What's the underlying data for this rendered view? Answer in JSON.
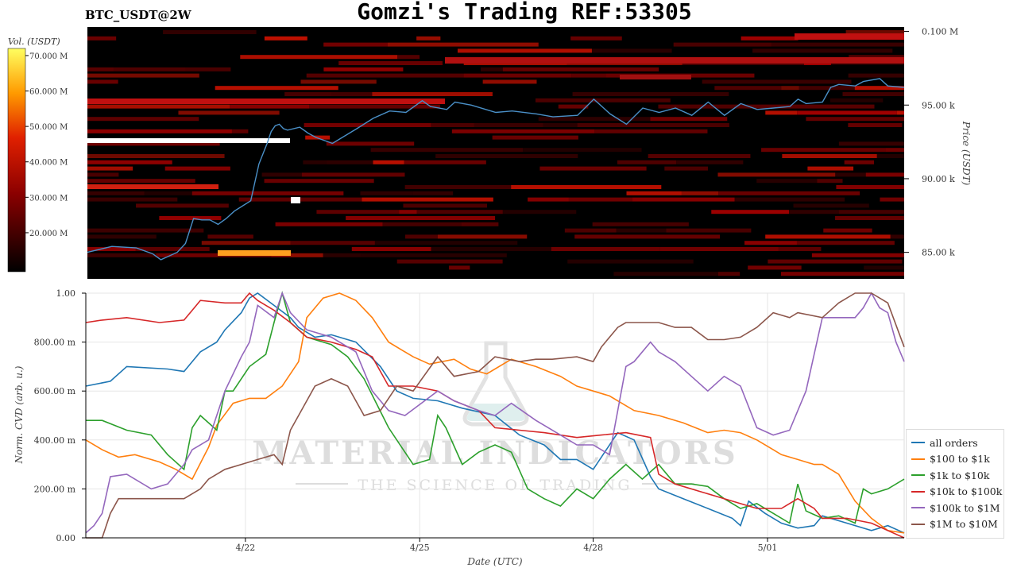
{
  "header": {
    "title": "Gomzi's Trading REF:53305",
    "symbol": "BTC_USDT@2W"
  },
  "watermark": {
    "brand": "MATERIAL INDICATORS",
    "tagline": "THE SCIENCE OF TRADING"
  },
  "colors": {
    "all_orders": "#1f77b4",
    "r100_1k": "#ff7f0e",
    "r1k_10k": "#2ca02c",
    "r10k_100k": "#d62728",
    "r100k_1m": "#9467bd",
    "r1m_10m": "#8c564b",
    "heatmap_bg": "#000000",
    "price_line": "#4a90c8"
  },
  "chart_data": [
    {
      "type": "heatmap",
      "ylabel": "Price (USDT)",
      "yticks": [
        "0.100 M",
        "95.00 k",
        "90.00 k",
        "85.00 k"
      ],
      "ytick_values": [
        100000,
        95000,
        90000,
        85000
      ],
      "ylim": [
        83200,
        100300
      ],
      "colorbar": {
        "label": "Vol. (USDT)",
        "ticks": [
          "70.000 M",
          "60.000 M",
          "50.000 M",
          "40.000 M",
          "30.000 M",
          "20.000 M"
        ],
        "tick_values": [
          70,
          60,
          50,
          40,
          30,
          20
        ],
        "range": [
          9,
          72
        ]
      },
      "price_series": {
        "x": [
          0,
          0.03,
          0.06,
          0.08,
          0.09,
          0.11,
          0.12,
          0.13,
          0.14,
          0.15,
          0.16,
          0.17,
          0.18,
          0.2,
          0.21,
          0.22,
          0.225,
          0.23,
          0.235,
          0.24,
          0.245,
          0.26,
          0.27,
          0.28,
          0.3,
          0.33,
          0.35,
          0.37,
          0.39,
          0.41,
          0.42,
          0.44,
          0.45,
          0.47,
          0.5,
          0.52,
          0.55,
          0.57,
          0.6,
          0.62,
          0.64,
          0.66,
          0.68,
          0.7,
          0.72,
          0.74,
          0.76,
          0.78,
          0.8,
          0.82,
          0.84,
          0.86,
          0.87,
          0.88,
          0.9,
          0.91,
          0.92,
          0.94,
          0.95,
          0.97,
          0.98,
          1.0
        ],
        "y": [
          85000,
          85400,
          85300,
          84900,
          84500,
          85000,
          85600,
          87300,
          87200,
          87200,
          86900,
          87300,
          87800,
          88500,
          91000,
          92400,
          93200,
          93600,
          93700,
          93400,
          93300,
          93500,
          93100,
          92800,
          92400,
          93400,
          94100,
          94600,
          94500,
          95300,
          94900,
          94700,
          95200,
          95000,
          94500,
          94600,
          94400,
          94200,
          94300,
          95400,
          94400,
          93700,
          94800,
          94500,
          94800,
          94300,
          95200,
          94300,
          95100,
          94700,
          94800,
          94900,
          95400,
          95100,
          95200,
          96200,
          96400,
          96300,
          96600,
          96800,
          96300,
          96200
        ]
      }
    },
    {
      "type": "line",
      "xlabel": "Date (UTC)",
      "ylabel": "Norm. CVD (arb. u.)",
      "x_ticks": [
        "4/22",
        "4/25",
        "4/28",
        "5/01"
      ],
      "x_tick_positions": [
        0.195,
        0.408,
        0.62,
        0.833
      ],
      "y_ticks": [
        "1.00",
        "800.00 m",
        "600.00 m",
        "400.00 m",
        "200.00 m",
        "0.00"
      ],
      "y_tick_values": [
        1.0,
        0.8,
        0.6,
        0.4,
        0.2,
        0.0
      ],
      "ylim": [
        0,
        1
      ],
      "xlim": [
        0,
        1
      ],
      "grid": true,
      "legend_position": "bottom-right",
      "series": [
        {
          "name": "all orders",
          "key": "all_orders",
          "x": [
            0,
            0.03,
            0.05,
            0.1,
            0.12,
            0.14,
            0.16,
            0.17,
            0.19,
            0.2,
            0.21,
            0.23,
            0.25,
            0.26,
            0.28,
            0.3,
            0.33,
            0.36,
            0.38,
            0.4,
            0.43,
            0.46,
            0.5,
            0.53,
            0.56,
            0.58,
            0.6,
            0.62,
            0.65,
            0.67,
            0.69,
            0.7,
            0.73,
            0.76,
            0.79,
            0.8,
            0.81,
            0.83,
            0.85,
            0.87,
            0.89,
            0.9,
            0.93,
            0.96,
            0.98,
            1.0
          ],
          "y": [
            0.62,
            0.64,
            0.7,
            0.69,
            0.68,
            0.76,
            0.8,
            0.85,
            0.92,
            0.98,
            1.0,
            0.95,
            0.9,
            0.86,
            0.82,
            0.83,
            0.8,
            0.7,
            0.6,
            0.57,
            0.56,
            0.53,
            0.5,
            0.42,
            0.38,
            0.32,
            0.32,
            0.28,
            0.43,
            0.4,
            0.25,
            0.2,
            0.16,
            0.12,
            0.08,
            0.05,
            0.15,
            0.1,
            0.06,
            0.04,
            0.05,
            0.09,
            0.06,
            0.03,
            0.05,
            0.02
          ]
        },
        {
          "name": "$100 to $1k",
          "key": "r100_1k",
          "x": [
            0,
            0.02,
            0.04,
            0.06,
            0.09,
            0.11,
            0.13,
            0.15,
            0.16,
            0.18,
            0.2,
            0.22,
            0.24,
            0.26,
            0.27,
            0.29,
            0.31,
            0.33,
            0.35,
            0.37,
            0.4,
            0.42,
            0.45,
            0.47,
            0.49,
            0.52,
            0.55,
            0.58,
            0.6,
            0.62,
            0.64,
            0.67,
            0.7,
            0.73,
            0.76,
            0.78,
            0.8,
            0.82,
            0.84,
            0.85,
            0.87,
            0.89,
            0.9,
            0.92,
            0.94,
            0.96,
            0.98,
            1.0
          ],
          "y": [
            0.4,
            0.36,
            0.33,
            0.34,
            0.31,
            0.28,
            0.24,
            0.37,
            0.46,
            0.55,
            0.57,
            0.57,
            0.62,
            0.72,
            0.9,
            0.98,
            1.0,
            0.97,
            0.9,
            0.8,
            0.74,
            0.71,
            0.73,
            0.69,
            0.67,
            0.73,
            0.7,
            0.66,
            0.62,
            0.6,
            0.58,
            0.52,
            0.5,
            0.47,
            0.43,
            0.44,
            0.43,
            0.4,
            0.36,
            0.34,
            0.32,
            0.3,
            0.3,
            0.26,
            0.15,
            0.08,
            0.03,
            0.02
          ]
        },
        {
          "name": "$1k to $10k",
          "key": "r1k_10k",
          "x": [
            0,
            0.02,
            0.05,
            0.08,
            0.1,
            0.12,
            0.13,
            0.14,
            0.16,
            0.17,
            0.18,
            0.2,
            0.22,
            0.23,
            0.24,
            0.25,
            0.27,
            0.29,
            0.3,
            0.32,
            0.34,
            0.37,
            0.4,
            0.42,
            0.43,
            0.44,
            0.46,
            0.48,
            0.5,
            0.52,
            0.54,
            0.56,
            0.58,
            0.6,
            0.62,
            0.64,
            0.66,
            0.68,
            0.7,
            0.72,
            0.74,
            0.76,
            0.78,
            0.8,
            0.82,
            0.84,
            0.86,
            0.87,
            0.88,
            0.9,
            0.92,
            0.94,
            0.95,
            0.96,
            0.98,
            1.0
          ],
          "y": [
            0.48,
            0.48,
            0.44,
            0.42,
            0.34,
            0.28,
            0.45,
            0.5,
            0.44,
            0.6,
            0.6,
            0.7,
            0.75,
            0.88,
            1.0,
            0.88,
            0.82,
            0.8,
            0.79,
            0.74,
            0.65,
            0.45,
            0.3,
            0.32,
            0.5,
            0.45,
            0.3,
            0.35,
            0.38,
            0.35,
            0.2,
            0.16,
            0.13,
            0.2,
            0.16,
            0.24,
            0.3,
            0.24,
            0.3,
            0.22,
            0.22,
            0.21,
            0.16,
            0.12,
            0.14,
            0.1,
            0.06,
            0.22,
            0.11,
            0.08,
            0.09,
            0.06,
            0.2,
            0.18,
            0.2,
            0.24
          ]
        },
        {
          "name": "$10k to $100k",
          "key": "r10k_100k",
          "x": [
            0,
            0.02,
            0.05,
            0.09,
            0.12,
            0.13,
            0.14,
            0.17,
            0.19,
            0.2,
            0.21,
            0.23,
            0.25,
            0.27,
            0.3,
            0.33,
            0.35,
            0.37,
            0.4,
            0.43,
            0.45,
            0.48,
            0.5,
            0.53,
            0.56,
            0.6,
            0.63,
            0.66,
            0.69,
            0.7,
            0.72,
            0.75,
            0.77,
            0.8,
            0.82,
            0.85,
            0.87,
            0.89,
            0.9,
            0.93,
            0.96,
            0.98,
            1.0
          ],
          "y": [
            0.88,
            0.89,
            0.9,
            0.88,
            0.89,
            0.93,
            0.97,
            0.96,
            0.96,
            1.0,
            0.97,
            0.93,
            0.88,
            0.82,
            0.8,
            0.77,
            0.74,
            0.62,
            0.62,
            0.6,
            0.56,
            0.52,
            0.45,
            0.44,
            0.43,
            0.41,
            0.42,
            0.43,
            0.41,
            0.26,
            0.22,
            0.19,
            0.17,
            0.14,
            0.12,
            0.12,
            0.16,
            0.12,
            0.08,
            0.08,
            0.06,
            0.03,
            0.0
          ]
        },
        {
          "name": "$100k to $1M",
          "key": "r100k_1m",
          "x": [
            0,
            0.01,
            0.02,
            0.03,
            0.05,
            0.08,
            0.1,
            0.12,
            0.13,
            0.15,
            0.17,
            0.19,
            0.2,
            0.21,
            0.23,
            0.24,
            0.25,
            0.27,
            0.3,
            0.33,
            0.35,
            0.37,
            0.39,
            0.41,
            0.43,
            0.45,
            0.48,
            0.5,
            0.52,
            0.55,
            0.58,
            0.6,
            0.62,
            0.64,
            0.66,
            0.67,
            0.69,
            0.7,
            0.72,
            0.74,
            0.76,
            0.78,
            0.8,
            0.82,
            0.84,
            0.86,
            0.88,
            0.9,
            0.92,
            0.94,
            0.95,
            0.96,
            0.97,
            0.98,
            0.99,
            1.0
          ],
          "y": [
            0.02,
            0.05,
            0.1,
            0.25,
            0.26,
            0.2,
            0.22,
            0.3,
            0.36,
            0.4,
            0.6,
            0.74,
            0.8,
            0.95,
            0.9,
            1.0,
            0.92,
            0.85,
            0.82,
            0.76,
            0.6,
            0.52,
            0.5,
            0.55,
            0.6,
            0.56,
            0.52,
            0.5,
            0.55,
            0.48,
            0.42,
            0.38,
            0.38,
            0.34,
            0.7,
            0.72,
            0.8,
            0.76,
            0.72,
            0.66,
            0.6,
            0.66,
            0.62,
            0.45,
            0.42,
            0.44,
            0.6,
            0.9,
            0.9,
            0.9,
            0.94,
            1.0,
            0.94,
            0.92,
            0.8,
            0.72
          ]
        },
        {
          "name": "$1M to $10M",
          "key": "r1m_10m",
          "x": [
            0,
            0.02,
            0.03,
            0.04,
            0.07,
            0.1,
            0.12,
            0.14,
            0.15,
            0.17,
            0.19,
            0.21,
            0.23,
            0.24,
            0.25,
            0.28,
            0.3,
            0.32,
            0.34,
            0.36,
            0.38,
            0.4,
            0.43,
            0.45,
            0.48,
            0.5,
            0.53,
            0.55,
            0.57,
            0.6,
            0.62,
            0.63,
            0.65,
            0.66,
            0.67,
            0.7,
            0.72,
            0.74,
            0.76,
            0.78,
            0.8,
            0.82,
            0.84,
            0.86,
            0.87,
            0.9,
            0.92,
            0.94,
            0.96,
            0.98,
            1.0
          ],
          "y": [
            0.0,
            0.0,
            0.1,
            0.16,
            0.16,
            0.16,
            0.16,
            0.2,
            0.24,
            0.28,
            0.3,
            0.32,
            0.34,
            0.3,
            0.44,
            0.62,
            0.65,
            0.62,
            0.5,
            0.52,
            0.62,
            0.6,
            0.74,
            0.66,
            0.68,
            0.74,
            0.72,
            0.73,
            0.73,
            0.74,
            0.72,
            0.78,
            0.86,
            0.88,
            0.88,
            0.88,
            0.86,
            0.86,
            0.81,
            0.81,
            0.82,
            0.86,
            0.92,
            0.9,
            0.92,
            0.9,
            0.96,
            1.0,
            1.0,
            0.96,
            0.78
          ]
        }
      ]
    }
  ]
}
